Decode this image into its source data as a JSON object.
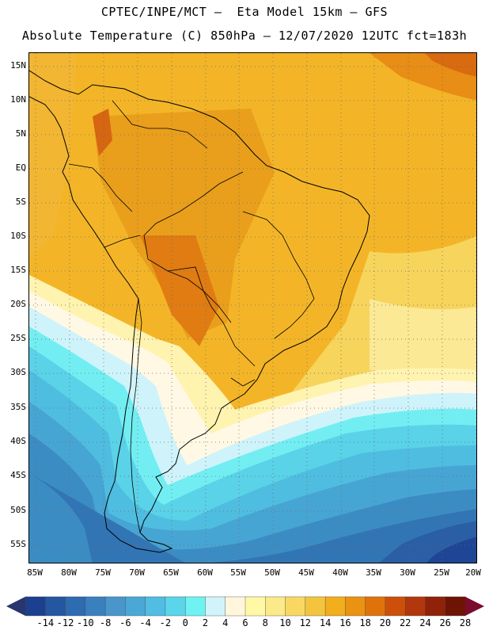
{
  "header": {
    "title_line1": "CPTEC/INPE/MCT –  Eta Model 15km – GFS",
    "title_line2": "Absolute Temperature (C) 850hPa – 12/07/2020 12UTC fct=183h"
  },
  "axes": {
    "lat_labels": [
      "15N",
      "10N",
      "5N",
      "EQ",
      "5S",
      "10S",
      "15S",
      "20S",
      "25S",
      "30S",
      "35S",
      "40S",
      "45S",
      "50S",
      "55S"
    ],
    "lon_labels": [
      "85W",
      "80W",
      "75W",
      "70W",
      "65W",
      "60W",
      "55W",
      "50W",
      "45W",
      "40W",
      "35W",
      "30W",
      "25W",
      "20W"
    ]
  },
  "colorbar": {
    "ticks": [
      "-14",
      "-12",
      "-10",
      "-8",
      "-6",
      "-4",
      "-2",
      "0",
      "2",
      "4",
      "6",
      "8",
      "10",
      "12",
      "14",
      "16",
      "18",
      "20",
      "22",
      "24",
      "26",
      "28"
    ],
    "colors": [
      "#1c3f8f",
      "#2557a0",
      "#2e6bb0",
      "#3a80bf",
      "#4a96cc",
      "#4aa8d6",
      "#52bde2",
      "#5ad5ea",
      "#6ff2f2",
      "#d0f4fa",
      "#fff6dc",
      "#fff8a6",
      "#fbe98a",
      "#f8d862",
      "#f4c43f",
      "#f2ae1c",
      "#ea9312",
      "#e0720b",
      "#cd500a",
      "#b3370c",
      "#8f2208",
      "#6d1404"
    ],
    "low_arrow_color": "#28356f",
    "high_arrow_color": "#7a0c2e"
  }
}
